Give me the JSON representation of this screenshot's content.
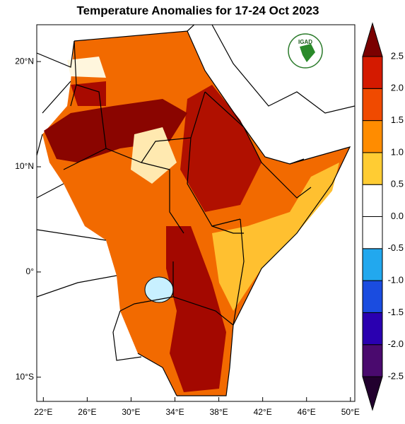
{
  "map": {
    "title": "Temperature Anomalies for 17-24 Oct 2023",
    "logo": "IGAD",
    "xlim": [
      21.4,
      50.4
    ],
    "ylim": [
      -12.3,
      23.5
    ],
    "xticks": [
      {
        "value": 22,
        "label": "22°E"
      },
      {
        "value": 26,
        "label": "26°E"
      },
      {
        "value": 30,
        "label": "30°E"
      },
      {
        "value": 34,
        "label": "34°E"
      },
      {
        "value": 38,
        "label": "38°E"
      },
      {
        "value": 42,
        "label": "42°E"
      },
      {
        "value": 46,
        "label": "46°E"
      },
      {
        "value": 50,
        "label": "50°E"
      }
    ],
    "yticks": [
      {
        "value": 20,
        "label": "20°N"
      },
      {
        "value": 10,
        "label": "10°N"
      },
      {
        "value": 0,
        "label": "0°"
      },
      {
        "value": -10,
        "label": "10°S"
      }
    ],
    "colorbar": {
      "levels": [
        -2.5,
        {
          "value": -2,
          "label": "-2.0"
        },
        -1.5,
        {
          "value": -1,
          "label": "-1.0"
        },
        -0.5,
        {
          "value": 0,
          "label": "0.0"
        },
        0.5,
        {
          "value": 1,
          "label": "1.0"
        },
        1.5,
        {
          "value": 2,
          "label": "2.0"
        },
        2.5
      ],
      "colors": [
        "#22002e",
        "#4a0a6e",
        "#2a00b0",
        "#1a4ce0",
        "#22a8ee",
        "#ffffff",
        "#ffffff",
        "#ffcc33",
        "#ff8c00",
        "#f04a00",
        "#d41a00",
        "#7a0000"
      ]
    }
  }
}
